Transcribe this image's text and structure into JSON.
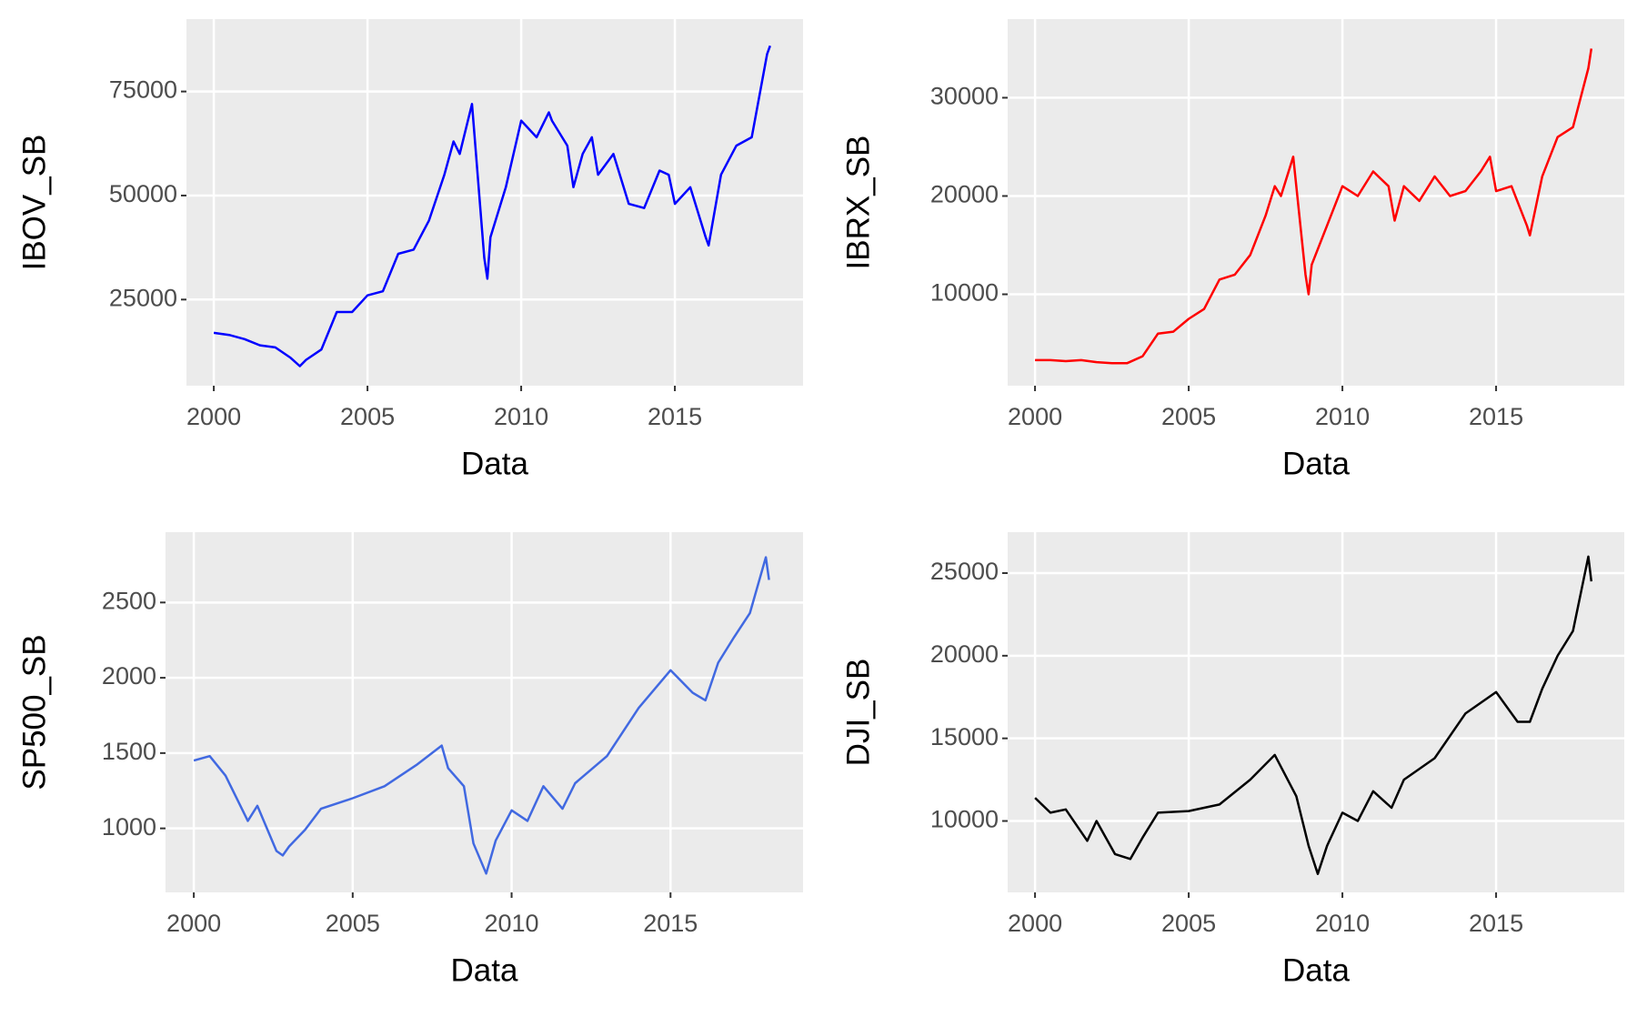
{
  "chart_data": [
    {
      "type": "line",
      "x_label": "Data",
      "y_label": "IBOV_SB",
      "color": "#0000ff",
      "xlim": [
        1999.11,
        2019.17
      ],
      "xticks": [
        2000,
        2005,
        2010,
        2015
      ],
      "ylim": [
        4300,
        92400
      ],
      "yticks": [
        25000,
        50000,
        75000
      ],
      "grid": true,
      "x": [
        2000,
        2000.5,
        2001,
        2001.5,
        2002,
        2002.5,
        2002.8,
        2003,
        2003.5,
        2004,
        2004.5,
        2005,
        2005.5,
        2006,
        2006.5,
        2007,
        2007.5,
        2007.8,
        2008,
        2008.4,
        2008.8,
        2008.9,
        2009,
        2009.5,
        2010,
        2010.5,
        2010.9,
        2011,
        2011.5,
        2011.7,
        2012,
        2012.3,
        2012.5,
        2013,
        2013.5,
        2014,
        2014.5,
        2014.8,
        2015,
        2015.5,
        2016,
        2016.1,
        2016.5,
        2017,
        2017.5,
        2018,
        2018.1
      ],
      "values": [
        17000,
        16500,
        15500,
        14000,
        13500,
        11000,
        9000,
        10500,
        13000,
        22000,
        22000,
        26000,
        27000,
        36000,
        37000,
        44000,
        55000,
        63000,
        60000,
        72000,
        35000,
        30000,
        40000,
        52000,
        68000,
        64000,
        70000,
        68000,
        62000,
        52000,
        60000,
        64000,
        55000,
        60000,
        48000,
        47000,
        56000,
        55000,
        48000,
        52000,
        40000,
        38000,
        55000,
        62000,
        64000,
        84000,
        86000
      ]
    },
    {
      "type": "line",
      "x_label": "Data",
      "y_label": "IBRX_SB",
      "color": "#ff0000",
      "xlim": [
        1999.11,
        2019.17
      ],
      "xticks": [
        2000,
        2005,
        2010,
        2015
      ],
      "ylim": [
        700,
        38000
      ],
      "yticks": [
        10000,
        20000,
        30000
      ],
      "grid": true,
      "x": [
        2000,
        2000.5,
        2001,
        2001.5,
        2002,
        2002.5,
        2003,
        2003.5,
        2004,
        2004.5,
        2005,
        2005.5,
        2006,
        2006.5,
        2007,
        2007.5,
        2007.8,
        2008,
        2008.4,
        2008.8,
        2008.9,
        2009,
        2009.5,
        2010,
        2010.5,
        2011,
        2011.5,
        2011.7,
        2012,
        2012.5,
        2013,
        2013.5,
        2014,
        2014.5,
        2014.8,
        2015,
        2015.5,
        2016,
        2016.1,
        2016.5,
        2017,
        2017.5,
        2018,
        2018.1
      ],
      "values": [
        3300,
        3300,
        3200,
        3300,
        3100,
        3000,
        3000,
        3700,
        6000,
        6200,
        7500,
        8500,
        11500,
        12000,
        14000,
        18000,
        21000,
        20000,
        24000,
        12000,
        10000,
        13000,
        17000,
        21000,
        20000,
        22500,
        21000,
        17500,
        21000,
        19500,
        22000,
        20000,
        20500,
        22500,
        24000,
        20500,
        21000,
        17000,
        16000,
        22000,
        26000,
        27000,
        33000,
        35000
      ]
    },
    {
      "type": "line",
      "x_label": "Data",
      "y_label": "SP500_SB",
      "color": "#4169e1",
      "xlim": [
        1999.11,
        2019.17
      ],
      "xticks": [
        2000,
        2005,
        2010,
        2015
      ],
      "ylim": [
        575,
        2967
      ],
      "yticks": [
        1000,
        1500,
        2000,
        2500
      ],
      "grid": true,
      "x": [
        2000,
        2000.5,
        2001,
        2001.7,
        2002,
        2002.6,
        2002.8,
        2003,
        2003.5,
        2004,
        2005,
        2006,
        2007,
        2007.8,
        2008,
        2008.5,
        2008.8,
        2009.2,
        2009.5,
        2010,
        2010.5,
        2011,
        2011.6,
        2012,
        2013,
        2014,
        2015,
        2015.7,
        2016.1,
        2016.5,
        2017,
        2017.5,
        2018,
        2018.1
      ],
      "values": [
        1450,
        1480,
        1350,
        1050,
        1150,
        850,
        820,
        880,
        990,
        1130,
        1200,
        1280,
        1420,
        1550,
        1400,
        1280,
        900,
        700,
        920,
        1120,
        1050,
        1280,
        1130,
        1300,
        1480,
        1800,
        2050,
        1900,
        1850,
        2100,
        2270,
        2430,
        2800,
        2650
      ]
    },
    {
      "type": "line",
      "x_label": "Data",
      "y_label": "DJI_SB",
      "color": "#000000",
      "xlim": [
        1999.11,
        2019.17
      ],
      "xticks": [
        2000,
        2005,
        2010,
        2015
      ],
      "ylim": [
        5680,
        27478
      ],
      "yticks": [
        10000,
        15000,
        20000,
        25000
      ],
      "grid": true,
      "x": [
        2000,
        2000.5,
        2001,
        2001.7,
        2002,
        2002.6,
        2003.1,
        2003.5,
        2004,
        2005,
        2006,
        2007,
        2007.8,
        2008.5,
        2008.9,
        2009.2,
        2009.5,
        2010,
        2010.5,
        2011,
        2011.6,
        2012,
        2013,
        2014,
        2015,
        2015.7,
        2016.1,
        2016.5,
        2017,
        2017.5,
        2018,
        2018.1
      ],
      "values": [
        11400,
        10500,
        10700,
        8800,
        10000,
        8000,
        7700,
        9000,
        10500,
        10600,
        11000,
        12500,
        14000,
        11500,
        8500,
        6800,
        8500,
        10500,
        10000,
        11800,
        10800,
        12500,
        13800,
        16500,
        17800,
        16000,
        16000,
        18000,
        20000,
        21500,
        26000,
        24500
      ]
    }
  ]
}
